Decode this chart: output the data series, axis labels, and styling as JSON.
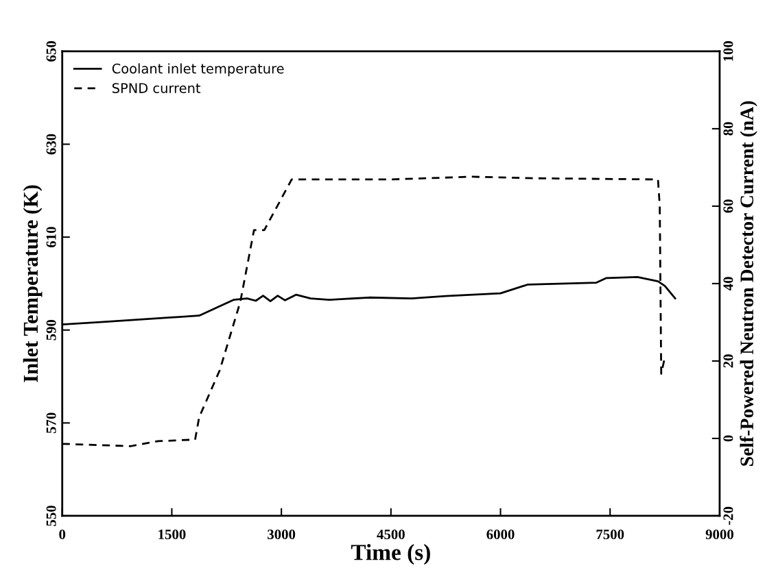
{
  "chart_data": {
    "type": "line",
    "xlabel": "Time (s)",
    "ylabel": "Inlet Temperature (K)",
    "y2label": "Self-Powered Neutron Detector Current (nA)",
    "xlim": [
      0,
      9000
    ],
    "xticks": [
      0,
      1500,
      3000,
      4500,
      6000,
      7500,
      9000
    ],
    "ylim": [
      550,
      650
    ],
    "yticks": [
      550,
      570,
      590,
      610,
      630,
      650
    ],
    "y2lim": [
      -20,
      100
    ],
    "y2ticks": [
      -20,
      0,
      20,
      40,
      60,
      80,
      100
    ],
    "legend": "top left",
    "grid": false,
    "series": [
      {
        "name": "Coolant inlet temperature",
        "color": "#000000",
        "line_style": "solid",
        "axis": "y",
        "x": [
          0,
          600,
          1200,
          1875,
          2344,
          2531,
          2650,
          2750,
          2850,
          2950,
          3050,
          3200,
          3400,
          3656,
          4200,
          4781,
          5250,
          6000,
          6375,
          7313,
          7450,
          7875,
          8156,
          8250,
          8391
        ],
        "values": [
          591.2,
          591.8,
          592.4,
          593.1,
          596.5,
          596.8,
          596.3,
          597.4,
          596.2,
          597.4,
          596.4,
          597.6,
          596.8,
          596.5,
          597.0,
          596.8,
          597.3,
          597.9,
          599.8,
          600.2,
          601.2,
          601.4,
          600.5,
          599.5,
          596.8
        ]
      },
      {
        "name": "SPND current",
        "color": "#000000",
        "line_style": "dashed",
        "axis": "y2",
        "x": [
          0,
          938,
          1313,
          1819,
          1875,
          2156,
          2438,
          2625,
          2766,
          3141,
          4500,
          5600,
          6500,
          8156,
          8180,
          8200,
          8250
        ],
        "values": [
          -1.4,
          -2,
          -0.7,
          -0.3,
          5.5,
          17.6,
          35.3,
          53.8,
          53.8,
          66.9,
          66.9,
          67.6,
          67.2,
          66.9,
          60,
          16.7,
          21
        ]
      }
    ]
  }
}
